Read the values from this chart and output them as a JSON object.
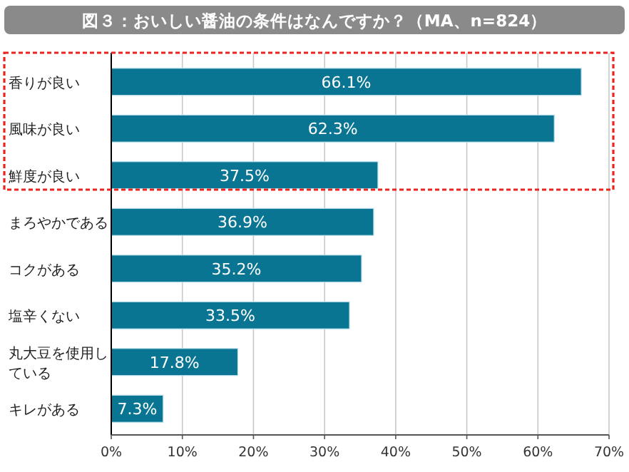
{
  "chart_data": {
    "type": "bar",
    "orientation": "horizontal",
    "title": "図３：おいしい醤油の条件はなんですか？（MA、n=824）",
    "categories": [
      "香りが良い",
      "風味が良い",
      "鮮度が良い",
      "まろやかである",
      "コクがある",
      "塩辛くない",
      "丸大豆を使用している",
      "キレがある"
    ],
    "values": [
      66.1,
      62.3,
      37.5,
      36.9,
      35.2,
      33.5,
      17.8,
      7.3
    ],
    "value_labels": [
      "66.1%",
      "62.3%",
      "37.5%",
      "36.9%",
      "35.2%",
      "33.5%",
      "17.8%",
      "7.3%"
    ],
    "color": "#0a7592",
    "xlim": [
      0,
      70
    ],
    "xticks": [
      {
        "value": 0,
        "label": "0%"
      },
      {
        "value": 10,
        "label": "10%"
      },
      {
        "value": 20,
        "label": "20%"
      },
      {
        "value": 30,
        "label": "30%"
      },
      {
        "value": 40,
        "label": "40%"
      },
      {
        "value": 50,
        "label": "50%"
      },
      {
        "value": 60,
        "label": "60%"
      },
      {
        "value": 70,
        "label": "70%"
      }
    ],
    "grid": "x"
  }
}
